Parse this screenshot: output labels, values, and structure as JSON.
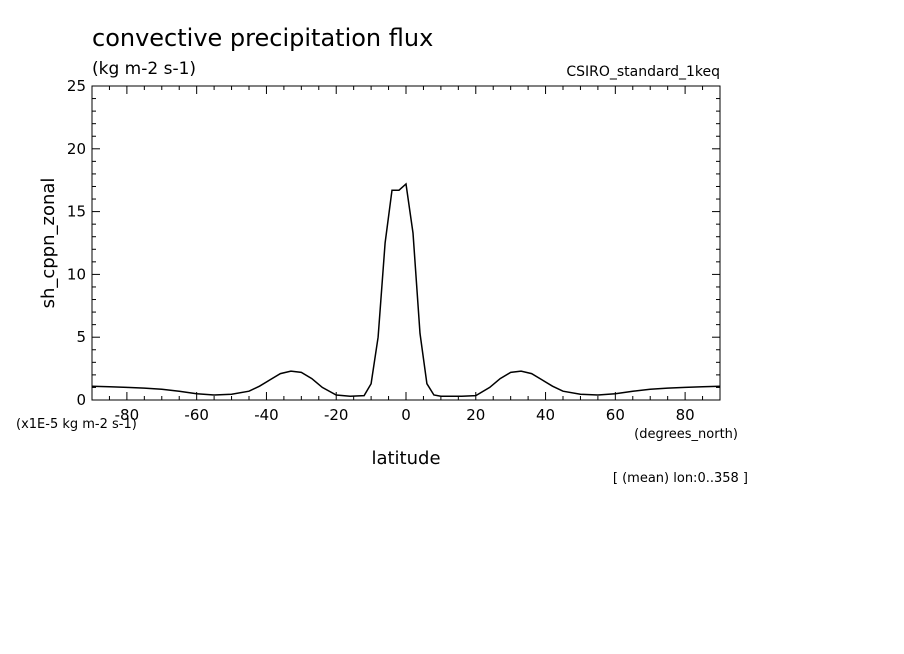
{
  "chart_data": {
    "type": "line",
    "title": "convective precipitation flux",
    "units": "(kg m-2 s-1)",
    "model": "CSIRO_standard_1keq",
    "ylabel": "sh_cppn_zonal",
    "xlabel": "latitude",
    "x_units": "(degrees_north)",
    "y_scale_note": "(x1E-5 kg m-2 s-1)",
    "footnote": "[ (mean) lon:0..358 ]",
    "xlim": [
      -90,
      90
    ],
    "ylim": [
      0,
      25
    ],
    "x_ticks": [
      -80,
      -60,
      -40,
      -20,
      0,
      20,
      40,
      60,
      80
    ],
    "x_tick_labels": [
      "-80",
      "-60",
      "-40",
      "-20",
      "0",
      "20",
      "40",
      "60",
      "80"
    ],
    "y_ticks": [
      0,
      5,
      10,
      15,
      20,
      25
    ],
    "y_tick_labels": [
      "0",
      "5",
      "10",
      "15",
      "20",
      "25"
    ],
    "series": [
      {
        "name": "sh_cppn_zonal",
        "x": [
          -90,
          -85,
          -80,
          -75,
          -70,
          -65,
          -60,
          -55,
          -50,
          -45,
          -42,
          -39,
          -36,
          -33,
          -30,
          -27,
          -24,
          -20,
          -16,
          -12,
          -10,
          -8,
          -6,
          -4,
          -2,
          0,
          2,
          4,
          6,
          8,
          10,
          12,
          16,
          20,
          24,
          27,
          30,
          33,
          36,
          39,
          42,
          45,
          50,
          55,
          60,
          65,
          70,
          75,
          80,
          85,
          90
        ],
        "y": [
          1.1,
          1.05,
          1.0,
          0.95,
          0.85,
          0.7,
          0.5,
          0.4,
          0.45,
          0.7,
          1.1,
          1.6,
          2.1,
          2.3,
          2.2,
          1.7,
          1.0,
          0.4,
          0.3,
          0.35,
          1.3,
          5.0,
          12.5,
          16.7,
          16.7,
          17.2,
          13.3,
          5.3,
          1.3,
          0.4,
          0.3,
          0.3,
          0.3,
          0.35,
          1.0,
          1.7,
          2.2,
          2.3,
          2.1,
          1.6,
          1.1,
          0.7,
          0.45,
          0.4,
          0.5,
          0.7,
          0.85,
          0.95,
          1.0,
          1.05,
          1.1
        ]
      }
    ]
  }
}
